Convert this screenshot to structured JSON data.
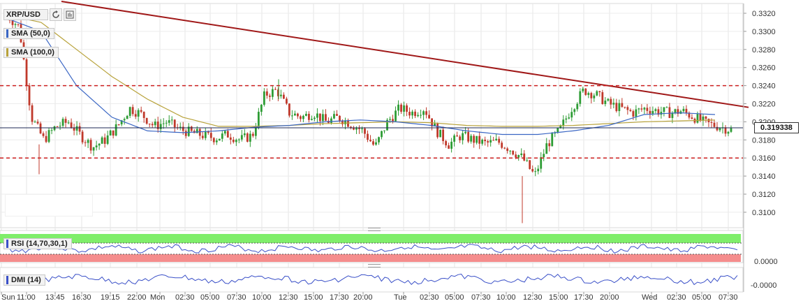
{
  "header": {
    "symbol": "XRP/USD",
    "refresh_icon": "refresh-icon",
    "chart_type_icon": "bar-chart-icon"
  },
  "indicators": {
    "sma50": {
      "label": "SMA (50,0)",
      "color": "#3a66c4"
    },
    "sma100": {
      "label": "SMA (100,0)",
      "color": "#b8a23a"
    },
    "rsi": {
      "label": "RSI (14,70,30,1)",
      "value_label": "0.0000"
    },
    "dmi": {
      "label": "DMI (14)",
      "value_label": "-0.0000"
    }
  },
  "current_price_label": "0.319338",
  "colors": {
    "up": "#2d9c34",
    "down": "#c0392b",
    "trendline": "#a01818",
    "level_line": "#cc1f1f",
    "rsi_overbought": "#7fee6a",
    "rsi_oversold": "#f58d8d",
    "line_blue": "#3a50c8"
  },
  "chart_data": {
    "type": "candlestick",
    "title": "XRP/USD",
    "y_axis": {
      "ticks": [
        "0.3320",
        "0.3300",
        "0.3280",
        "0.3260",
        "0.3240",
        "0.3220",
        "0.3200",
        "0.3180",
        "0.3160",
        "0.3140",
        "0.3120",
        "0.3100"
      ],
      "range": [
        0.3085,
        0.3328
      ]
    },
    "x_axis": {
      "ticks": [
        "Sun",
        "11:00",
        "13:45",
        "16:30",
        "19:15",
        "22:00",
        "Mon",
        "02:30",
        "05:00",
        "07:30",
        "10:00",
        "12:30",
        "15:00",
        "17:30",
        "20:00",
        "Tue",
        "02:30",
        "05:00",
        "07:30",
        "10:00",
        "12:30",
        "15:00",
        "17:30",
        "20:00",
        "Wed",
        "02:30",
        "05:00",
        "07:30"
      ]
    },
    "horizontal_levels": [
      0.324,
      0.316
    ],
    "last_price": 0.319338,
    "trendline": {
      "start": 0.333,
      "end": 0.3216
    },
    "ohlc_anchors": [
      [
        0.3318,
        0.3305,
        0.3205,
        0.318,
        0.3195,
        0.32,
        0.3185,
        0.3172,
        0.318,
        0.3195,
        0.3215,
        0.3208,
        0.3195,
        0.32,
        0.3192,
        0.3188,
        0.3185,
        0.3182,
        0.3186,
        0.318
      ],
      [
        0.3185,
        0.323,
        0.3235,
        0.321,
        0.3205,
        0.321,
        0.32,
        0.3205,
        0.3198,
        0.319,
        0.3172,
        0.32,
        0.3215,
        0.321,
        0.3215,
        0.319,
        0.3175,
        0.3185,
        0.318,
        0.3176
      ],
      [
        0.3178,
        0.317,
        0.316,
        0.314,
        0.3175,
        0.319,
        0.3215,
        0.3235,
        0.323,
        0.322,
        0.3215,
        0.321,
        0.3215,
        0.3212,
        0.321,
        0.3212,
        0.3205,
        0.3198,
        0.3195,
        0.3191
      ]
    ],
    "sma50_anchors": [
      0.3315,
      0.33,
      0.324,
      0.3205,
      0.319,
      0.3188,
      0.319,
      0.3194,
      0.3196,
      0.32,
      0.3202,
      0.32,
      0.3196,
      0.319,
      0.3186,
      0.3186,
      0.319,
      0.3196,
      0.3208,
      0.321,
      0.3208
    ],
    "sma100_anchors": [
      0.3318,
      0.331,
      0.328,
      0.325,
      0.3225,
      0.3205,
      0.3195,
      0.3195,
      0.3196,
      0.3198,
      0.3199,
      0.32,
      0.3199,
      0.3196,
      0.3195,
      0.3195,
      0.3196,
      0.3198,
      0.32,
      0.3201,
      0.3202
    ]
  }
}
